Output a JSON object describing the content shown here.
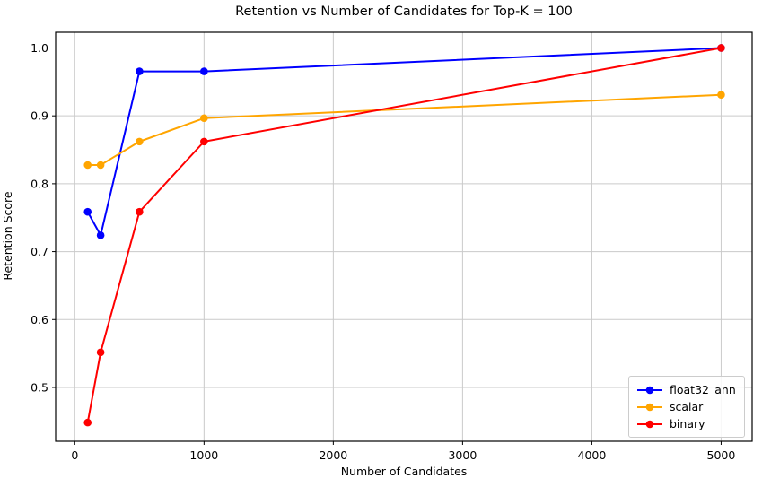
{
  "figure": {
    "background": "#ffffff"
  },
  "chart_data": {
    "type": "line",
    "title": "Retention vs Number of Candidates for Top-K = 100",
    "xlabel": "Number of Candidates",
    "ylabel": "Retention Score",
    "x": [
      100,
      200,
      500,
      1000,
      5000
    ],
    "series": [
      {
        "name": "float32_ann",
        "color": "#0000ff",
        "values": [
          0.7586,
          0.7241,
          0.9655,
          0.9655,
          1.0
        ]
      },
      {
        "name": "scalar",
        "color": "#ffa500",
        "values": [
          0.8276,
          0.8276,
          0.8621,
          0.8966,
          0.931
        ]
      },
      {
        "name": "binary",
        "color": "#ff0000",
        "values": [
          0.4483,
          0.5517,
          0.7586,
          0.8621,
          1.0
        ]
      }
    ],
    "xticks": [
      0,
      1000,
      2000,
      3000,
      4000,
      5000
    ],
    "yticks": [
      0.5,
      0.6,
      0.7,
      0.8,
      0.9,
      1.0
    ],
    "xlim": [
      -148,
      5240
    ],
    "ylim": [
      0.4207,
      1.0231
    ],
    "grid": true,
    "legend_position": "lower right",
    "style": {
      "grid_color": "#cacaca",
      "spine_color": "#000000",
      "tick_color": "#000000",
      "text_color": "#000000",
      "line_width": 2,
      "marker_radius": 4.3
    }
  }
}
